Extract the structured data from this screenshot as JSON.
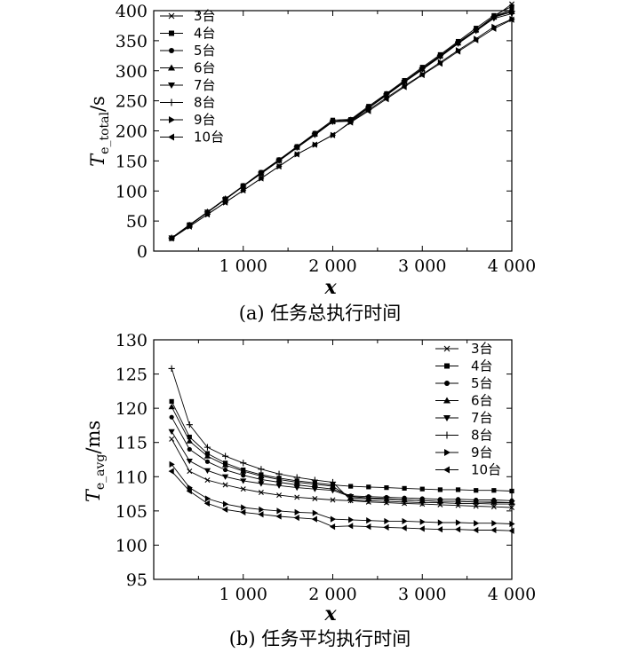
{
  "figure": {
    "captions": [
      "(a) 任务总执行时间",
      "(b) 任务平均执行时间"
    ]
  },
  "chart_data": [
    {
      "type": "line",
      "caption": "(a) 任务总执行时间",
      "xlabel": "x",
      "ylabel_main": "T",
      "ylabel_sub": "e_total",
      "ylabel_unit": "/s",
      "xlim": [
        0,
        4000
      ],
      "ylim": [
        0,
        400
      ],
      "xticks": [
        1000,
        2000,
        3000,
        4000
      ],
      "xtick_labels": [
        "1 000",
        "2 000",
        "3 000",
        "4 000"
      ],
      "yticks": [
        0,
        50,
        100,
        150,
        200,
        250,
        300,
        350,
        400
      ],
      "ytick_labels": [
        "0",
        "50",
        "100",
        "150",
        "200",
        "250",
        "300",
        "350",
        "400"
      ],
      "legend_position": "top-left",
      "grid": false,
      "x": [
        200,
        400,
        600,
        800,
        1000,
        1200,
        1400,
        1600,
        1800,
        2000,
        2200,
        2400,
        2600,
        2800,
        3000,
        3200,
        3400,
        3600,
        3800,
        4000
      ],
      "series": [
        {
          "name": "3台",
          "marker": "x",
          "values": [
            22,
            43,
            64,
            86,
            108,
            129,
            150,
            172,
            194,
            215,
            216,
            238,
            260,
            281,
            302,
            324,
            346,
            367,
            389,
            411
          ]
        },
        {
          "name": "4台",
          "marker": "square",
          "values": [
            22,
            44,
            65,
            87,
            109,
            131,
            152,
            174,
            196,
            218,
            219,
            241,
            262,
            284,
            306,
            327,
            349,
            371,
            392,
            407
          ]
        },
        {
          "name": "5台",
          "marker": "circle",
          "values": [
            22,
            43,
            65,
            86,
            108,
            129,
            151,
            173,
            194,
            216,
            218,
            239,
            261,
            282,
            304,
            325,
            347,
            368,
            390,
            402
          ]
        },
        {
          "name": "6台",
          "marker": "triangle-up",
          "values": [
            22,
            43,
            65,
            86,
            108,
            130,
            151,
            173,
            195,
            216,
            218,
            239,
            260,
            282,
            303,
            325,
            346,
            368,
            389,
            398
          ]
        },
        {
          "name": "7台",
          "marker": "triangle-down",
          "values": [
            22,
            43,
            65,
            86,
            108,
            129,
            150,
            172,
            193,
            215,
            217,
            238,
            259,
            281,
            302,
            323,
            345,
            366,
            387,
            395
          ]
        },
        {
          "name": "8台",
          "marker": "plus",
          "values": [
            22,
            43,
            65,
            87,
            108,
            130,
            151,
            173,
            195,
            216,
            218,
            239,
            261,
            282,
            304,
            325,
            347,
            368,
            390,
            399
          ]
        },
        {
          "name": "9台",
          "marker": "triangle-right",
          "values": [
            21,
            41,
            61,
            81,
            101,
            121,
            141,
            161,
            177,
            193,
            215,
            235,
            255,
            275,
            294,
            314,
            334,
            353,
            373,
            386
          ]
        },
        {
          "name": "10台",
          "marker": "triangle-left",
          "values": [
            21,
            41,
            61,
            81,
            101,
            121,
            141,
            161,
            177,
            193,
            214,
            233,
            253,
            273,
            293,
            312,
            332,
            351,
            370,
            385
          ]
        }
      ]
    },
    {
      "type": "line",
      "caption": "(b) 任务平均执行时间",
      "xlabel": "x",
      "ylabel_main": "T",
      "ylabel_sub": "e_avg",
      "ylabel_unit": "/ms",
      "xlim": [
        0,
        4000
      ],
      "ylim": [
        95,
        130
      ],
      "xticks": [
        1000,
        2000,
        3000,
        4000
      ],
      "xtick_labels": [
        "1 000",
        "2 000",
        "3 000",
        "4 000"
      ],
      "yticks": [
        95,
        100,
        105,
        110,
        115,
        120,
        125,
        130
      ],
      "ytick_labels": [
        "95",
        "100",
        "105",
        "110",
        "115",
        "120",
        "125",
        "130"
      ],
      "legend_position": "top-right",
      "grid": false,
      "x": [
        200,
        400,
        600,
        800,
        1000,
        1200,
        1400,
        1600,
        1800,
        2000,
        2200,
        2400,
        2600,
        2800,
        3000,
        3200,
        3400,
        3600,
        3800,
        4000
      ],
      "series": [
        {
          "name": "3台",
          "marker": "x",
          "values": [
            115.5,
            110.8,
            109.5,
            108.8,
            108.2,
            107.7,
            107.3,
            107.0,
            106.8,
            106.6,
            106.5,
            106.3,
            106.2,
            106.1,
            106.0,
            105.9,
            105.8,
            105.7,
            105.6,
            105.5
          ]
        },
        {
          "name": "4台",
          "marker": "square",
          "values": [
            121.0,
            115.8,
            113.4,
            112.0,
            111.0,
            110.3,
            109.8,
            109.4,
            109.1,
            108.8,
            108.6,
            108.5,
            108.4,
            108.3,
            108.2,
            108.1,
            108.1,
            108.0,
            108.0,
            107.9
          ]
        },
        {
          "name": "5台",
          "marker": "circle",
          "values": [
            118.7,
            114.0,
            112.2,
            111.0,
            110.2,
            109.6,
            109.2,
            108.8,
            108.5,
            108.2,
            107.2,
            107.1,
            107.0,
            106.9,
            106.8,
            106.7,
            106.7,
            106.6,
            106.6,
            106.5
          ]
        },
        {
          "name": "6台",
          "marker": "triangle-up",
          "values": [
            120.2,
            115.2,
            113.0,
            111.7,
            110.8,
            110.1,
            109.6,
            109.2,
            108.9,
            108.6,
            106.9,
            106.8,
            106.7,
            106.6,
            106.5,
            106.4,
            106.4,
            106.3,
            106.3,
            106.2
          ]
        },
        {
          "name": "7台",
          "marker": "triangle-down",
          "values": [
            116.6,
            112.3,
            110.9,
            110.0,
            109.4,
            109.0,
            108.7,
            108.4,
            108.2,
            108.0,
            107.1,
            106.9,
            106.8,
            106.6,
            106.5,
            106.4,
            106.4,
            106.3,
            106.2,
            106.2
          ]
        },
        {
          "name": "8台",
          "marker": "plus",
          "values": [
            125.8,
            117.6,
            114.3,
            113.0,
            112.0,
            111.1,
            110.4,
            109.9,
            109.5,
            109.2,
            106.6,
            106.5,
            106.4,
            106.3,
            106.2,
            106.2,
            106.1,
            106.1,
            106.0,
            106.0
          ]
        },
        {
          "name": "9台",
          "marker": "triangle-right",
          "values": [
            111.8,
            108.4,
            106.8,
            106.0,
            105.5,
            105.2,
            105.0,
            104.8,
            104.7,
            103.8,
            103.7,
            103.6,
            103.5,
            103.5,
            103.4,
            103.3,
            103.3,
            103.2,
            103.2,
            103.1
          ]
        },
        {
          "name": "10台",
          "marker": "triangle-left",
          "values": [
            110.8,
            107.9,
            106.1,
            105.2,
            104.8,
            104.5,
            104.2,
            104.0,
            103.8,
            102.7,
            102.8,
            102.7,
            102.6,
            102.5,
            102.4,
            102.3,
            102.3,
            102.2,
            102.2,
            102.1
          ]
        }
      ]
    }
  ]
}
